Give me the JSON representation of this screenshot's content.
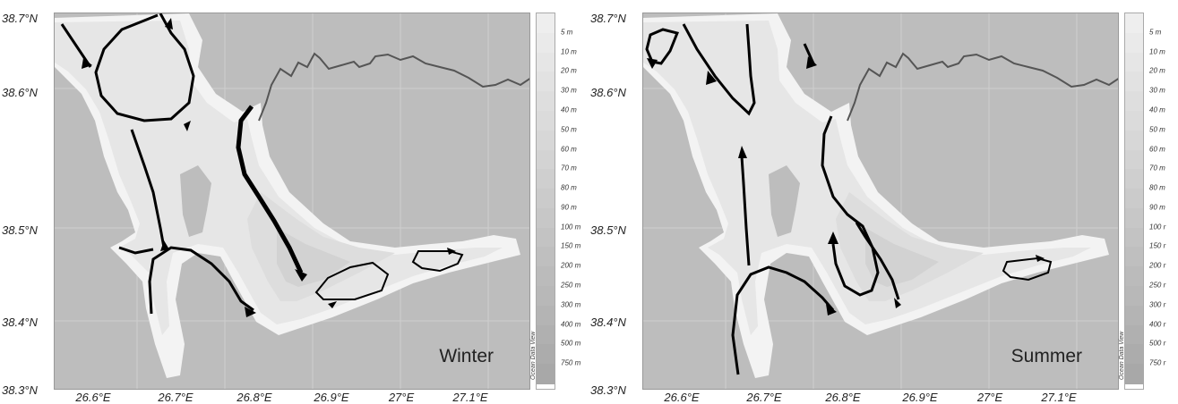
{
  "panels": [
    {
      "season": "Winter",
      "lat_labels": [
        "38.7°N",
        "38.6°N",
        "38.5°N",
        "38.4°N",
        "38.3°N"
      ],
      "lon_labels": [
        "26.6°E",
        "26.7°E",
        "26.8°E",
        "26.9°E",
        "27°E",
        "27.1°E"
      ],
      "credit": "Ocean Data View"
    },
    {
      "season": "Summer",
      "lat_labels": [
        "38.7°N",
        "38.6°N",
        "38.5°N",
        "38.4°N",
        "38.3°N"
      ],
      "lon_labels": [
        "26.6°E",
        "26.7°E",
        "26.8°E",
        "26.9°E",
        "27°E",
        "27.1°E"
      ],
      "credit": "Ocean Data View"
    }
  ],
  "depth_scale": {
    "labels_left": [
      "5 m",
      "10 m",
      "20 m",
      "30 m",
      "40 m",
      "50 m",
      "60 m",
      "70 m",
      "80 m",
      "90 m",
      "100 m",
      "150 m",
      "200 m",
      "250 m",
      "300 m",
      "400 m",
      "500 m",
      "750 m"
    ],
    "labels_right": [
      "5 m",
      "10 m",
      "20 m",
      "30 m",
      "40 m",
      "50 m",
      "60 m",
      "70 m",
      "80 m",
      "90 m",
      "100 r",
      "150 r",
      "200 r",
      "250 r",
      "300 r",
      "400 r",
      "500 r",
      "750 r"
    ]
  },
  "colors": {
    "land": "#bdbdbd",
    "shallow_shelf": "#f3f3f3",
    "shelf": "#e6e6e6",
    "gulf": "#dddddd",
    "deep": "#d2d2d2",
    "river": "#555555",
    "current": "#000000"
  }
}
